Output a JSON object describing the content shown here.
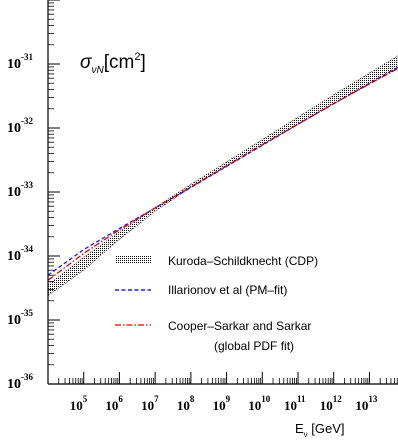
{
  "chart_data": {
    "type": "line",
    "title": "",
    "inset_label": {
      "symbol": "σ",
      "subscript": "νN",
      "unit": "[cm",
      "unit_power": "2",
      "unit_close": "]"
    },
    "xlabel": {
      "symbol": "E",
      "subscript": "ν",
      "unit": " [GeV]"
    },
    "x_scale": "log",
    "y_scale": "log",
    "xlim_exp": [
      4.0,
      13.8
    ],
    "ylim_exp": [
      -36.0,
      -30.0
    ],
    "x_major_exponents": [
      5,
      6,
      7,
      8,
      9,
      10,
      11,
      12,
      13
    ],
    "y_major_exponents": [
      -36,
      -35,
      -34,
      -33,
      -32,
      -31
    ],
    "tick_base": "10",
    "grid": false,
    "legend_position": "middle-right",
    "legend": [
      {
        "label": "Kuroda–Schildknecht (CDP)",
        "style": "dotted-band",
        "color": "#000000"
      },
      {
        "label": "Illarionov et al (PM–fit)",
        "style": "dashed",
        "color": "#1a1aff"
      },
      {
        "label": "Cooper–Sarkar and Sarkar",
        "label2": "(global PDF fit)",
        "style": "dash-dot",
        "color": "#e00000"
      }
    ],
    "series": [
      {
        "name": "Kuroda–Schildknecht (CDP)",
        "kind": "band",
        "x_log10E": [
          4.0,
          5.0,
          6.0,
          7.0,
          8.0,
          9.0,
          10.0,
          11.0,
          12.0,
          13.0,
          13.8
        ],
        "y_upper_log10": [
          -34.45,
          -34.02,
          -33.62,
          -33.24,
          -32.88,
          -32.53,
          -32.18,
          -31.83,
          -31.48,
          -31.14,
          -30.87
        ],
        "y_lower_log10": [
          -34.62,
          -34.22,
          -33.74,
          -33.3,
          -32.93,
          -32.6,
          -32.27,
          -31.94,
          -31.62,
          -31.32,
          -31.06
        ]
      },
      {
        "name": "Illarionov et al (PM–fit)",
        "kind": "line",
        "x_log10E": [
          4.0,
          5.0,
          6.0,
          7.0,
          8.0,
          9.0,
          10.0,
          11.0,
          12.0,
          13.0,
          13.8
        ],
        "y_log10": [
          -34.3,
          -33.9,
          -33.57,
          -33.25,
          -32.93,
          -32.6,
          -32.27,
          -31.94,
          -31.62,
          -31.3,
          -31.05
        ]
      },
      {
        "name": "Cooper–Sarkar and Sarkar",
        "kind": "line",
        "x_log10E": [
          4.0,
          5.0,
          6.0,
          7.0,
          8.0,
          9.0,
          10.0,
          11.0,
          12.0,
          13.0,
          13.8
        ],
        "y_log10": [
          -34.38,
          -33.96,
          -33.59,
          -33.25,
          -32.92,
          -32.59,
          -32.26,
          -31.94,
          -31.62,
          -31.31,
          -31.07
        ]
      }
    ]
  }
}
